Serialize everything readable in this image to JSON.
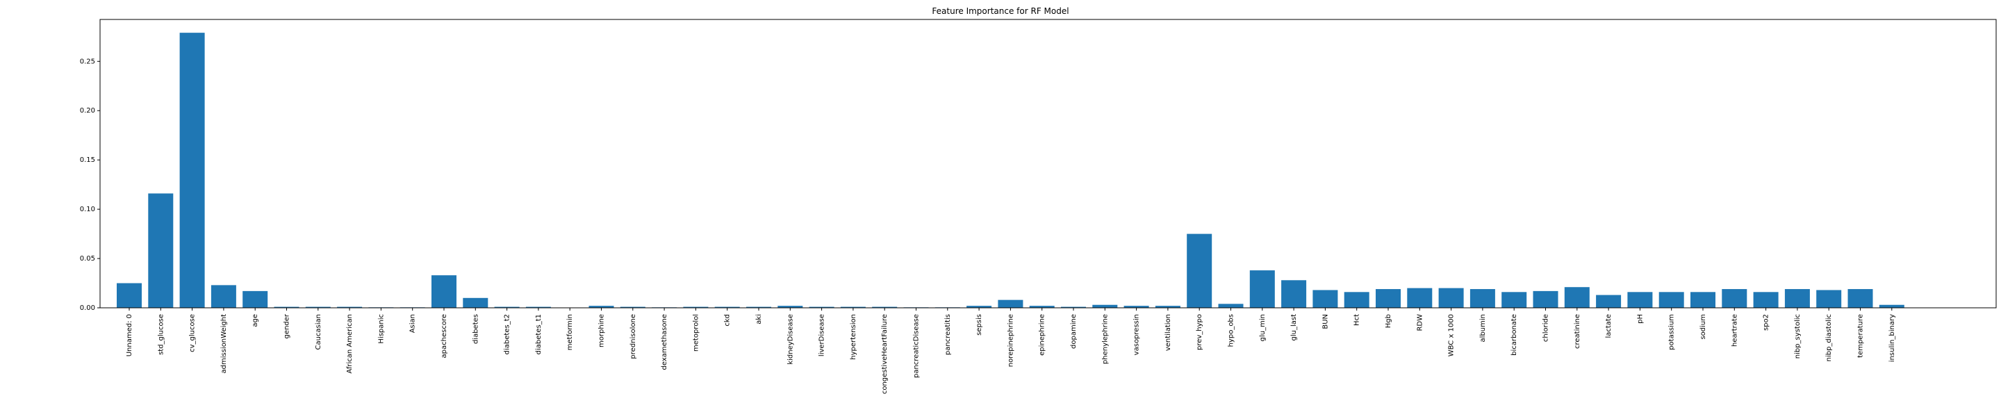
{
  "chart_data": {
    "type": "bar",
    "title": "Feature Importance for RF Model",
    "xlabel": "",
    "ylabel": "",
    "ylim": [
      0,
      0.2925
    ],
    "yticks": [
      0.0,
      0.05,
      0.1,
      0.15,
      0.2,
      0.25
    ],
    "ytick_labels": [
      "0.00",
      "0.05",
      "0.10",
      "0.15",
      "0.20",
      "0.25"
    ],
    "grid": false,
    "bar_color": "#1f77b4",
    "categories": [
      "Unnamed: 0",
      "std_glucose",
      "cv_glucose",
      "admissionWeight",
      "age",
      "gender",
      "Caucasian",
      "African American",
      "Hispanic",
      "Asian",
      "apachescore",
      "diabetes",
      "diabetes_t2",
      "diabetes_t1",
      "metformin",
      "morphine",
      "prednisolone",
      "dexamethasone",
      "metoprolol",
      "ckd",
      "aki",
      "kidneyDisease",
      "liverDisease",
      "hypertension",
      "congestiveHeartFailure",
      "pancreaticDisease",
      "pancreatitis",
      "sepsis",
      "norepinephrine",
      "epinephrine",
      "dopamine",
      "phenylephrine",
      "vasopressin",
      "ventilation",
      "prev_hypo",
      "hypo_obs",
      "glu_min",
      "glu_last",
      "BUN",
      "Hct",
      "Hgb",
      "RDW",
      "WBC x 1000",
      "albumin",
      "bicarbonate",
      "chloride",
      "creatinine",
      "lactate",
      "pH",
      "potassium",
      "sodium",
      "heartrate",
      "spo2",
      "nibp_systolic",
      "nibp_diastolic",
      "temperature",
      "insulin_binary"
    ],
    "values": [
      0.025,
      0.116,
      0.279,
      0.023,
      0.017,
      0.001,
      0.001,
      0.001,
      0.0005,
      0.0005,
      0.033,
      0.01,
      0.001,
      0.001,
      0.0003,
      0.002,
      0.001,
      0.0005,
      0.001,
      0.001,
      0.001,
      0.002,
      0.001,
      0.001,
      0.001,
      0.0005,
      0.0005,
      0.002,
      0.008,
      0.002,
      0.001,
      0.003,
      0.002,
      0.002,
      0.075,
      0.004,
      0.038,
      0.028,
      0.018,
      0.016,
      0.019,
      0.02,
      0.02,
      0.019,
      0.016,
      0.017,
      0.021,
      0.013,
      0.016,
      0.016,
      0.016,
      0.019,
      0.016,
      0.019,
      0.018,
      0.019,
      0.003
    ]
  }
}
